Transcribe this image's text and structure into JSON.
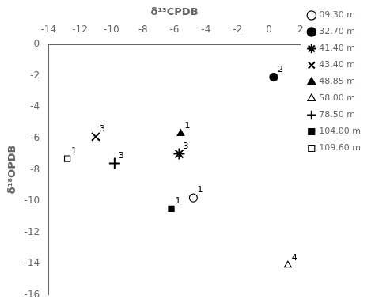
{
  "chart_data": {
    "type": "scatter",
    "x_label": "δ¹³CPDB",
    "y_label": "δ¹⁸OPDB",
    "xlim": [
      -14,
      2
    ],
    "xticks": [
      -14,
      -12,
      -10,
      -8,
      -6,
      -4,
      -2,
      0,
      2
    ],
    "ylim": [
      -16,
      0
    ],
    "yticks": [
      0,
      -2,
      -4,
      -6,
      -8,
      -10,
      -12,
      -14,
      -16
    ],
    "grid": false,
    "legend": "right",
    "series": [
      {
        "name": "09.30 m",
        "marker": "circle-open",
        "color": "#000000",
        "x": [
          -4.8
        ],
        "values": [
          -9.8
        ],
        "annotations": [
          "1"
        ]
      },
      {
        "name": "32.70 m",
        "marker": "circle",
        "color": "#000000",
        "x": [
          0.3
        ],
        "values": [
          -2.1
        ],
        "annotations": [
          "2"
        ]
      },
      {
        "name": "41.40 m",
        "marker": "star",
        "color": "#000000",
        "x": [
          -5.7
        ],
        "values": [
          -7.0
        ],
        "annotations": [
          "3"
        ]
      },
      {
        "name": "43.40 m",
        "marker": "x",
        "color": "#000000",
        "x": [
          -11.0
        ],
        "values": [
          -5.9
        ],
        "annotations": [
          "3"
        ]
      },
      {
        "name": "48.85 m",
        "marker": "triangle",
        "color": "#000000",
        "x": [
          -5.6
        ],
        "values": [
          -5.7
        ],
        "annotations": [
          "1"
        ]
      },
      {
        "name": "58.00 m",
        "marker": "triangle-open",
        "color": "#000000",
        "x": [
          1.2
        ],
        "values": [
          -14.1
        ],
        "annotations": [
          "4"
        ]
      },
      {
        "name": "78.50 m",
        "marker": "plus",
        "color": "#000000",
        "x": [
          -9.8
        ],
        "values": [
          -7.6
        ],
        "annotations": [
          "3"
        ]
      },
      {
        "name": "104.00 m",
        "marker": "square",
        "color": "#000000",
        "x": [
          -6.2
        ],
        "values": [
          -10.5
        ],
        "annotations": [
          "1"
        ]
      },
      {
        "name": "109.60 m",
        "marker": "square-open",
        "color": "#000000",
        "x": [
          -12.8
        ],
        "values": [
          -7.3
        ],
        "annotations": [
          "1"
        ]
      }
    ]
  }
}
